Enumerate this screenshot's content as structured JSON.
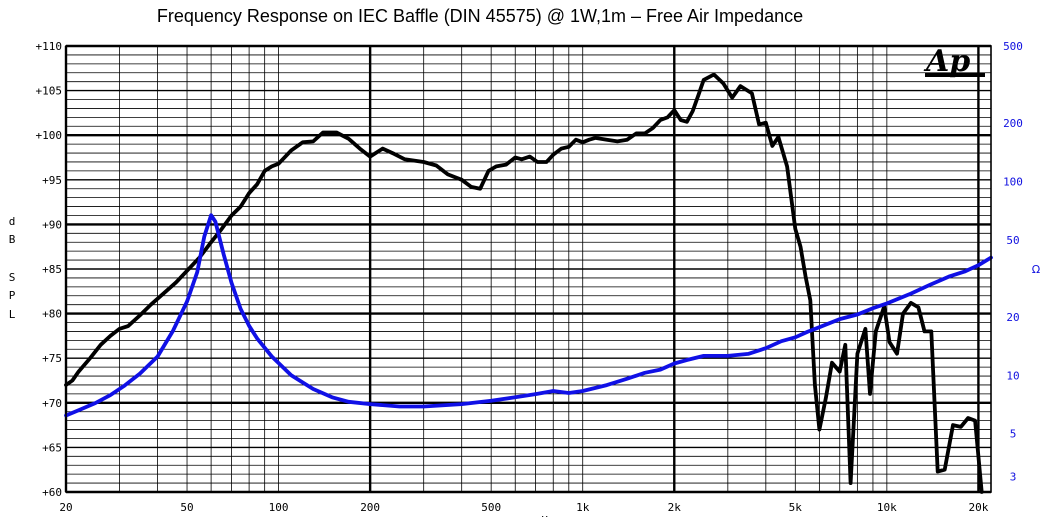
{
  "chart_data": {
    "type": "line",
    "title": "Frequency Response on IEC Baffle (DIN 45575)  @ 1W,1m – Free Air Impedance",
    "logo_text": "Ap",
    "xlabel": "Hz",
    "ylabel_letters": [
      "d",
      "B",
      "S",
      "P",
      "L"
    ],
    "ylabel_right": "Ω",
    "x_scale": "log",
    "xlim": [
      20,
      22000
    ],
    "x_ticks": [
      {
        "value": 20,
        "label": "20"
      },
      {
        "value": 50,
        "label": "50"
      },
      {
        "value": 100,
        "label": "100"
      },
      {
        "value": 200,
        "label": "200"
      },
      {
        "value": 500,
        "label": "500"
      },
      {
        "value": 1000,
        "label": "1k"
      },
      {
        "value": 2000,
        "label": "2k"
      },
      {
        "value": 5000,
        "label": "5k"
      },
      {
        "value": 10000,
        "label": "10k"
      },
      {
        "value": 20000,
        "label": "20k"
      }
    ],
    "ylim": [
      60,
      110
    ],
    "y_ticks": [
      "+60",
      "+65",
      "+70",
      "+75",
      "+80",
      "+85",
      "+90",
      "+95",
      "+100",
      "+105",
      "+110"
    ],
    "y2_scale": "log",
    "y2lim": [
      2.5,
      500
    ],
    "y2_ticks": [
      {
        "value": 3,
        "label": "3"
      },
      {
        "value": 5,
        "label": "5"
      },
      {
        "value": 10,
        "label": "10"
      },
      {
        "value": 20,
        "label": "20"
      },
      {
        "value": 50,
        "label": "50"
      },
      {
        "value": 100,
        "label": "100"
      },
      {
        "value": 200,
        "label": "200"
      },
      {
        "value": 500,
        "label": "500"
      }
    ],
    "grid": true,
    "series": [
      {
        "color": "#000000",
        "axis": "left",
        "points": [
          [
            20,
            72.0
          ],
          [
            21,
            72.5
          ],
          [
            22,
            73.5
          ],
          [
            24,
            75.0
          ],
          [
            26,
            76.5
          ],
          [
            28,
            77.5
          ],
          [
            30,
            78.3
          ],
          [
            32,
            78.6
          ],
          [
            35,
            79.8
          ],
          [
            38,
            81.0
          ],
          [
            42,
            82.3
          ],
          [
            46,
            83.5
          ],
          [
            50,
            84.8
          ],
          [
            55,
            86.3
          ],
          [
            60,
            88.0
          ],
          [
            65,
            89.5
          ],
          [
            70,
            91.0
          ],
          [
            75,
            92.0
          ],
          [
            80,
            93.5
          ],
          [
            85,
            94.5
          ],
          [
            90,
            96.0
          ],
          [
            95,
            96.5
          ],
          [
            100,
            96.8
          ],
          [
            110,
            98.3
          ],
          [
            120,
            99.2
          ],
          [
            130,
            99.3
          ],
          [
            140,
            100.3
          ],
          [
            155,
            100.3
          ],
          [
            170,
            99.6
          ],
          [
            185,
            98.5
          ],
          [
            200,
            97.6
          ],
          [
            220,
            98.5
          ],
          [
            240,
            97.9
          ],
          [
            260,
            97.3
          ],
          [
            300,
            97.0
          ],
          [
            330,
            96.6
          ],
          [
            360,
            95.6
          ],
          [
            400,
            95.0
          ],
          [
            430,
            94.2
          ],
          [
            460,
            94.0
          ],
          [
            490,
            96.0
          ],
          [
            520,
            96.5
          ],
          [
            560,
            96.7
          ],
          [
            600,
            97.5
          ],
          [
            630,
            97.3
          ],
          [
            670,
            97.6
          ],
          [
            710,
            97.0
          ],
          [
            760,
            97.0
          ],
          [
            800,
            97.8
          ],
          [
            850,
            98.5
          ],
          [
            900,
            98.7
          ],
          [
            950,
            99.5
          ],
          [
            1000,
            99.2
          ],
          [
            1050,
            99.5
          ],
          [
            1100,
            99.7
          ],
          [
            1200,
            99.5
          ],
          [
            1300,
            99.3
          ],
          [
            1400,
            99.5
          ],
          [
            1500,
            100.2
          ],
          [
            1600,
            100.2
          ],
          [
            1700,
            100.8
          ],
          [
            1800,
            101.7
          ],
          [
            1900,
            102.0
          ],
          [
            2000,
            102.8
          ],
          [
            2100,
            101.7
          ],
          [
            2200,
            101.5
          ],
          [
            2300,
            102.7
          ],
          [
            2400,
            104.5
          ],
          [
            2500,
            106.2
          ],
          [
            2700,
            106.8
          ],
          [
            2900,
            105.8
          ],
          [
            3100,
            104.2
          ],
          [
            3300,
            105.5
          ],
          [
            3600,
            104.7
          ],
          [
            3800,
            101.2
          ],
          [
            4000,
            101.4
          ],
          [
            4200,
            98.8
          ],
          [
            4400,
            99.8
          ],
          [
            4700,
            96.5
          ],
          [
            5000,
            89.5
          ],
          [
            5200,
            87.5
          ],
          [
            5400,
            84.2
          ],
          [
            5600,
            81.5
          ],
          [
            5800,
            72.0
          ],
          [
            6000,
            67.0
          ],
          [
            6300,
            70.5
          ],
          [
            6600,
            74.5
          ],
          [
            7000,
            73.5
          ],
          [
            7300,
            76.5
          ],
          [
            7600,
            61.0
          ],
          [
            8000,
            75.5
          ],
          [
            8500,
            78.3
          ],
          [
            8800,
            71.0
          ],
          [
            9200,
            78.0
          ],
          [
            9800,
            80.8
          ],
          [
            10200,
            76.8
          ],
          [
            10800,
            75.5
          ],
          [
            11300,
            80.0
          ],
          [
            12000,
            81.2
          ],
          [
            12700,
            80.7
          ],
          [
            13300,
            78.0
          ],
          [
            14000,
            78.0
          ],
          [
            14700,
            62.3
          ],
          [
            15500,
            62.5
          ],
          [
            16500,
            67.5
          ],
          [
            17500,
            67.3
          ],
          [
            18500,
            68.3
          ],
          [
            19500,
            68.0
          ],
          [
            20500,
            60.0
          ]
        ]
      },
      {
        "color": "#1010e6",
        "axis": "right",
        "points": [
          [
            20,
            6.2
          ],
          [
            22,
            6.6
          ],
          [
            25,
            7.2
          ],
          [
            28,
            7.9
          ],
          [
            31,
            8.8
          ],
          [
            35,
            10.2
          ],
          [
            40,
            12.5
          ],
          [
            45,
            17.0
          ],
          [
            50,
            24.0
          ],
          [
            54,
            34.0
          ],
          [
            57,
            52.0
          ],
          [
            60,
            67.0
          ],
          [
            62,
            62.0
          ],
          [
            66,
            42.0
          ],
          [
            70,
            30.0
          ],
          [
            75,
            22.0
          ],
          [
            80,
            18.0
          ],
          [
            85,
            15.5
          ],
          [
            95,
            12.5
          ],
          [
            110,
            10.0
          ],
          [
            130,
            8.5
          ],
          [
            150,
            7.7
          ],
          [
            170,
            7.3
          ],
          [
            200,
            7.1
          ],
          [
            250,
            6.9
          ],
          [
            300,
            6.9
          ],
          [
            400,
            7.1
          ],
          [
            500,
            7.4
          ],
          [
            600,
            7.7
          ],
          [
            700,
            8.0
          ],
          [
            800,
            8.3
          ],
          [
            900,
            8.1
          ],
          [
            1000,
            8.3
          ],
          [
            1200,
            8.9
          ],
          [
            1400,
            9.6
          ],
          [
            1600,
            10.3
          ],
          [
            1800,
            10.7
          ],
          [
            2000,
            11.5
          ],
          [
            2200,
            12.0
          ],
          [
            2500,
            12.6
          ],
          [
            3000,
            12.6
          ],
          [
            3500,
            12.9
          ],
          [
            4000,
            13.8
          ],
          [
            4500,
            15.0
          ],
          [
            5000,
            15.7
          ],
          [
            5500,
            16.8
          ],
          [
            6000,
            17.7
          ],
          [
            7000,
            19.5
          ],
          [
            8000,
            20.6
          ],
          [
            9000,
            22.2
          ],
          [
            10000,
            23.5
          ],
          [
            12000,
            26.4
          ],
          [
            14000,
            29.5
          ],
          [
            16000,
            32.3
          ],
          [
            18000,
            34.3
          ],
          [
            20000,
            37.0
          ],
          [
            22000,
            40.5
          ]
        ]
      }
    ]
  }
}
